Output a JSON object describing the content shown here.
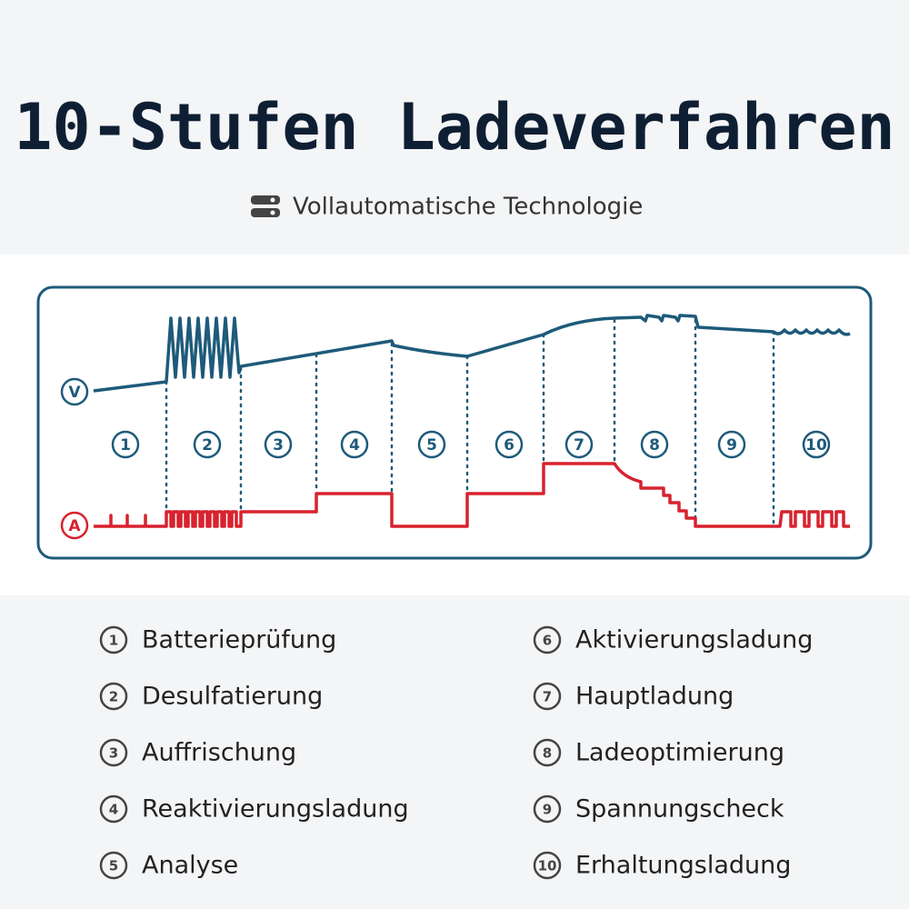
{
  "header": {
    "title": "10-Stufen Ladeverfahren",
    "subtitle": "Vollautomatische Technologie"
  },
  "diagram": {
    "voltage_label": "V",
    "current_label": "A",
    "stages": [
      "1",
      "2",
      "3",
      "4",
      "5",
      "6",
      "7",
      "8",
      "9",
      "10"
    ]
  },
  "legend": {
    "items": [
      {
        "number": "1",
        "label": "Batterieprüfung"
      },
      {
        "number": "2",
        "label": "Desulfatierung"
      },
      {
        "number": "3",
        "label": "Auffrischung"
      },
      {
        "number": "4",
        "label": "Reaktivierungsladung"
      },
      {
        "number": "5",
        "label": "Analyse"
      },
      {
        "number": "6",
        "label": "Aktivierungsladung"
      },
      {
        "number": "7",
        "label": "Hauptladung"
      },
      {
        "number": "8",
        "label": "Ladeoptimierung"
      },
      {
        "number": "9",
        "label": "Spannungscheck"
      },
      {
        "number": "10",
        "label": "Erhaltungsladung"
      }
    ]
  }
}
